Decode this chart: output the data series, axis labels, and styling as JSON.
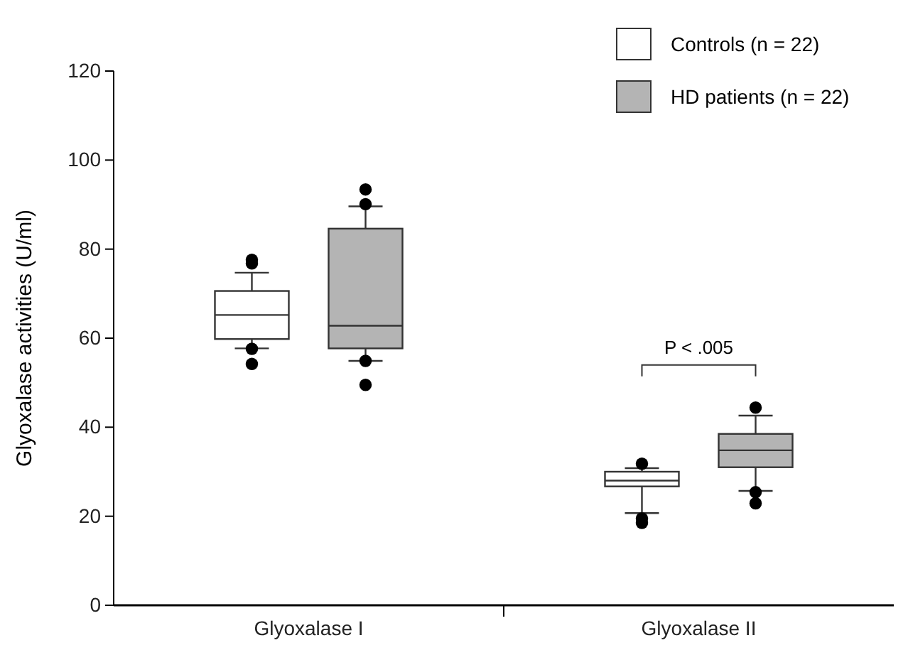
{
  "chart_data": {
    "type": "box",
    "ylabel": "Glyoxalase activities (U/ml)",
    "categories": [
      "Glyoxalase I",
      "Glyoxalase II"
    ],
    "ylim": [
      0,
      120
    ],
    "yticks": [
      0,
      20,
      40,
      60,
      80,
      100,
      120
    ],
    "grid": false,
    "legend": "top right",
    "marker": "circle",
    "series": [
      {
        "name": "Controls (n = 22)",
        "color": "#ffffff",
        "boxes": [
          {
            "low": 57.7,
            "q1": 59.8,
            "median": 65.2,
            "q3": 70.6,
            "high": 74.7,
            "outliers": [
              77.6,
              76.8,
              57.6,
              54.2
            ]
          },
          {
            "low": 20.7,
            "q1": 26.7,
            "median": 28.0,
            "q3": 30.0,
            "high": 30.8,
            "outliers": [
              31.8,
              19.5,
              18.5
            ]
          }
        ]
      },
      {
        "name": "HD patients (n = 22)",
        "color": "#b4b4b4",
        "boxes": [
          {
            "low": 54.9,
            "q1": 57.7,
            "median": 62.8,
            "q3": 84.6,
            "high": 89.6,
            "outliers": [
              93.4,
              90.1,
              54.9,
              49.5
            ]
          },
          {
            "low": 25.7,
            "q1": 31.0,
            "median": 34.8,
            "q3": 38.5,
            "high": 42.6,
            "outliers": [
              44.4,
              25.4,
              22.9
            ]
          }
        ]
      }
    ],
    "annotations": [
      "P < .005"
    ]
  }
}
